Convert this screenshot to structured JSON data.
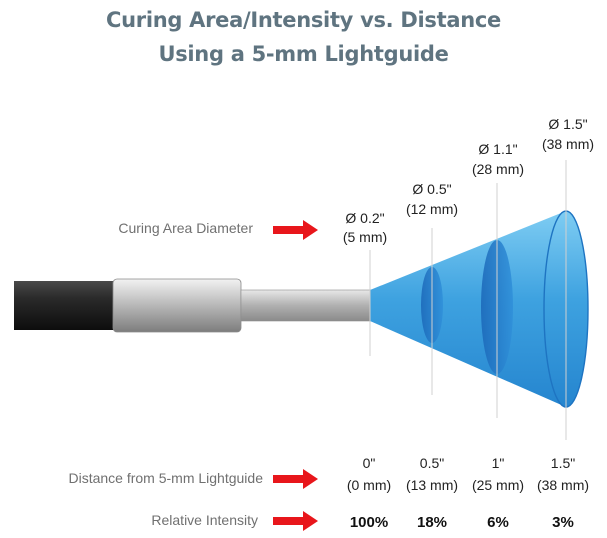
{
  "title_line_1": "Curing Area/Intensity vs. Distance",
  "title_line_2": "Using a 5-mm Lightguide",
  "row_labels": {
    "diameter": "Curing Area Diameter",
    "distance": "Distance from 5-mm Lightguide",
    "intensity": "Relative Intensity"
  },
  "diameters": [
    {
      "inch": "Ø 0.2\"",
      "mm": "(5 mm)"
    },
    {
      "inch": "Ø 0.5\"",
      "mm": "(12 mm)"
    },
    {
      "inch": "Ø 1.1\"",
      "mm": "(28 mm)"
    },
    {
      "inch": "Ø 1.5\"",
      "mm": "(38 mm)"
    }
  ],
  "distances": [
    {
      "inch": "0\"",
      "mm": "(0 mm)"
    },
    {
      "inch": "0.5\"",
      "mm": "(13 mm)"
    },
    {
      "inch": "1\"",
      "mm": "(25 mm)"
    },
    {
      "inch": "1.5\"",
      "mm": "(38 mm)"
    }
  ],
  "intensities": [
    "100%",
    "18%",
    "6%",
    "3%"
  ],
  "colors": {
    "title": "#5f7480",
    "arrow": "#e8161b",
    "cone_light": "#6fc3ef",
    "cone_dark": "#1f78c8",
    "cable": "#222222"
  }
}
